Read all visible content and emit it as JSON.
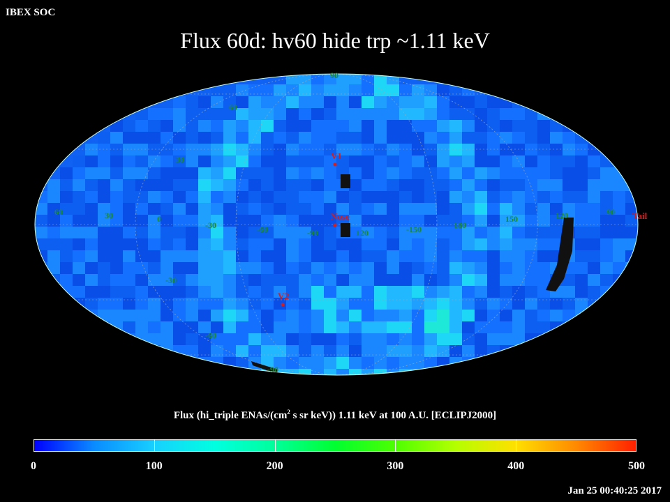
{
  "header": {
    "soc_label": "IBEX SOC",
    "title": "Flux   60d: hv60 hide trp ~1.11 keV"
  },
  "map": {
    "projection": "Aitoff/Hammer all-sky, ecliptic J2000",
    "latitude_labels": [
      "60",
      "30",
      "-30",
      "-60",
      "-90"
    ],
    "top_pole_label": "90",
    "longitude_labels": [
      "60",
      "30",
      "0",
      "-30",
      "-60",
      "-90",
      "120",
      "-150",
      "180",
      "150",
      "120",
      "90"
    ],
    "markers": [
      {
        "name": "V1",
        "color": "#d02020"
      },
      {
        "name": "Nose",
        "color": "#d02020"
      },
      {
        "name": "V2",
        "color": "#d02020"
      },
      {
        "name": "Tail",
        "color": "#d02020"
      }
    ],
    "label_color": "#1a8a3a"
  },
  "colorbar": {
    "label_prefix": "Flux (hi_triple ENAs/(cm",
    "label_sup": "2",
    "label_suffix": " s sr keV))  1.11 keV at 100 A.U. [ECLIPJ2000]",
    "ticks": [
      "0",
      "100",
      "200",
      "300",
      "400",
      "500"
    ],
    "min": 0,
    "max": 500
  },
  "footer": {
    "timestamp": "Jan 25 00:40:25 2017"
  }
}
